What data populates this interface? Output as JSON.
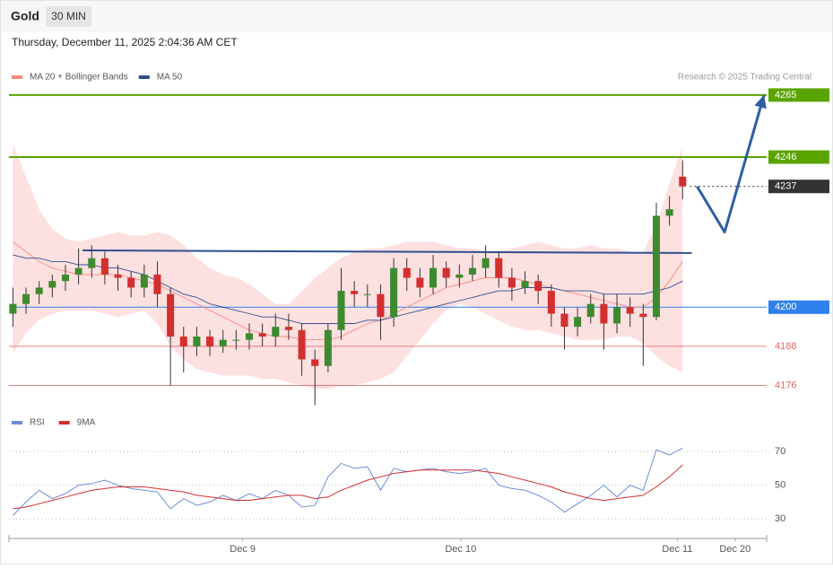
{
  "header": {
    "symbol": "Gold",
    "interval": "30 MIN",
    "timestamp": "Thursday, December 11, 2025 2:04:36 AM CET",
    "credit": "Research © 2025 Trading Central"
  },
  "chart_data": [
    {
      "type": "candlestick",
      "xlim": [
        -0.3,
        57.4
      ],
      "ylim": [
        4169,
        4268
      ],
      "up_color": "#3d8b2f",
      "down_color": "#d32f2f",
      "open": [
        4198,
        4201,
        4204,
        4206,
        4208,
        4210,
        4212,
        4215,
        4210,
        4209,
        4206,
        4210,
        4204,
        4191,
        4188,
        4191,
        4188,
        4190,
        4190,
        4192,
        4191,
        4194,
        4193,
        4184,
        4182,
        4193,
        4205,
        4204,
        4204,
        4197,
        4212,
        4209,
        4206,
        4212,
        4209,
        4210,
        4212,
        4215,
        4209,
        4206,
        4208,
        4205,
        4198,
        4194,
        4197,
        4201,
        4195,
        4200,
        4198,
        4197,
        4228,
        4240
      ],
      "high": [
        4206,
        4206,
        4208,
        4210,
        4213,
        4218,
        4219,
        4217,
        4213,
        4211,
        4213,
        4214,
        4206,
        4194,
        4194,
        4193,
        4193,
        4193,
        4195,
        4195,
        4198,
        4198,
        4195,
        4187,
        4195,
        4212,
        4208,
        4207,
        4207,
        4215,
        4215,
        4212,
        4216,
        4214,
        4213,
        4216,
        4219,
        4217,
        4212,
        4211,
        4210,
        4207,
        4200,
        4200,
        4204,
        4204,
        4204,
        4203,
        4201,
        4232,
        4234,
        4245
      ],
      "low": [
        4194,
        4198,
        4201,
        4203,
        4205,
        4207,
        4209,
        4207,
        4205,
        4203,
        4203,
        4200,
        4176,
        4180,
        4185,
        4185,
        4186,
        4187,
        4187,
        4188,
        4188,
        4190,
        4179,
        4170,
        4180,
        4190,
        4200,
        4200,
        4190,
        4194,
        4205,
        4203,
        4204,
        4206,
        4206,
        4208,
        4209,
        4206,
        4202,
        4204,
        4201,
        4194,
        4187,
        4191,
        4195,
        4187,
        4192,
        4194,
        4182,
        4196,
        4225,
        4233
      ],
      "close": [
        4201,
        4204,
        4206,
        4208,
        4210,
        4212,
        4215,
        4210,
        4209,
        4206,
        4210,
        4204,
        4191,
        4188,
        4191,
        4188,
        4190,
        4190,
        4192,
        4191,
        4194,
        4193,
        4184,
        4182,
        4193,
        4205,
        4204,
        4204,
        4197,
        4212,
        4209,
        4206,
        4212,
        4209,
        4210,
        4212,
        4215,
        4209,
        4206,
        4208,
        4205,
        4198,
        4194,
        4197,
        4201,
        4195,
        4200,
        4198,
        4197,
        4228,
        4230,
        4237
      ],
      "series": [
        {
          "name": "MA 20 + Bollinger Bands",
          "color": "#f28b82",
          "band_color": "#fde0e0",
          "values": [
            4220,
            4217,
            4214,
            4212,
            4211,
            4210,
            4210,
            4210,
            4210,
            4209,
            4208,
            4207,
            4205,
            4203,
            4201,
            4199,
            4197,
            4195,
            4193,
            4192,
            4191,
            4191,
            4190,
            4190,
            4190,
            4191,
            4193,
            4195,
            4196,
            4198,
            4200,
            4202,
            4204,
            4206,
            4207,
            4208,
            4209,
            4209,
            4209,
            4208,
            4207,
            4206,
            4205,
            4204,
            4203,
            4202,
            4201,
            4200,
            4200,
            4203,
            4208,
            4214
          ],
          "upper": [
            4250,
            4240,
            4230,
            4224,
            4221,
            4220,
            4221,
            4222,
            4223,
            4222,
            4222,
            4223,
            4222,
            4219,
            4215,
            4212,
            4210,
            4209,
            4207,
            4204,
            4201,
            4201,
            4205,
            4209,
            4212,
            4215,
            4217,
            4218,
            4218,
            4219,
            4220,
            4220,
            4220,
            4219,
            4218,
            4218,
            4217,
            4217,
            4218,
            4219,
            4220,
            4219,
            4218,
            4218,
            4219,
            4218,
            4218,
            4217,
            4217,
            4225,
            4238,
            4249
          ],
          "lower": [
            4186,
            4192,
            4196,
            4198,
            4199,
            4199,
            4199,
            4198,
            4197,
            4198,
            4199,
            4195,
            4188,
            4184,
            4181,
            4180,
            4179,
            4179,
            4179,
            4178,
            4178,
            4177,
            4176,
            4175,
            4175,
            4176,
            4176,
            4177,
            4178,
            4180,
            4185,
            4190,
            4195,
            4199,
            4201,
            4200,
            4198,
            4196,
            4194,
            4193,
            4193,
            4192,
            4191,
            4190,
            4190,
            4190,
            4191,
            4191,
            4189,
            4185,
            4182,
            4180
          ]
        },
        {
          "name": "MA 50",
          "color": "#2f4f8f",
          "values": [
            4216,
            4215,
            4215,
            4214,
            4214,
            4213,
            4213,
            4212,
            4212,
            4211,
            4210,
            4208,
            4206,
            4204,
            4203,
            4201,
            4200,
            4199,
            4198,
            4197,
            4197,
            4196,
            4195,
            4195,
            4195,
            4195,
            4195,
            4196,
            4196,
            4197,
            4198,
            4199,
            4200,
            4201,
            4202,
            4203,
            4204,
            4205,
            4205,
            4206,
            4206,
            4206,
            4205,
            4205,
            4205,
            4204,
            4204,
            4204,
            4204,
            4205,
            4206,
            4208
          ]
        }
      ],
      "levels": [
        {
          "value": 4265,
          "color": "#5aa400",
          "line_style": "solid",
          "label_box": true
        },
        {
          "value": 4246,
          "color": "#5aa400",
          "line_style": "solid",
          "label_box": true
        },
        {
          "value": 4237,
          "color": "#333333",
          "line_style": "dotted",
          "label_box": true
        },
        {
          "value": 4200,
          "color": "#2f80ed",
          "line_style": "solid",
          "label_box": true
        },
        {
          "value": 4188,
          "color": "#e06666",
          "line_style": "solid",
          "label_box": false
        },
        {
          "value": 4176,
          "color": "#e06666",
          "line_style": "solid",
          "label_box": false
        }
      ],
      "trend_line": {
        "color": "#2f4f8f",
        "x": [
          5.3,
          51.7
        ],
        "values": [
          4217.4,
          4216.6
        ]
      },
      "forecast": {
        "color": "#2e5fa3",
        "x": [
          52.1,
          54.2,
          57.2
        ],
        "values": [
          4237,
          4223,
          4265
        ]
      }
    },
    {
      "type": "line",
      "xlim": [
        -0.3,
        57.4
      ],
      "ylim": [
        21,
        77
      ],
      "xticks": [
        {
          "value": 17.5,
          "label": "Dec 9"
        },
        {
          "value": 34.1,
          "label": "Dec 10"
        },
        {
          "value": 50.6,
          "label": "Dec 11"
        },
        {
          "value": 55.0,
          "label": "Dec 20"
        }
      ],
      "yticks": [
        70,
        50,
        30
      ],
      "grid": true,
      "series": [
        {
          "name": "RSI",
          "color": "#6b8fd6",
          "values": [
            32,
            40,
            47,
            42,
            45,
            50,
            51,
            53,
            50,
            48,
            47,
            46,
            36,
            42,
            38,
            40,
            44,
            41,
            45,
            42,
            47,
            44,
            37,
            38,
            55,
            63,
            60,
            61,
            47,
            60,
            58,
            59,
            60,
            58,
            57,
            58,
            60,
            50,
            48,
            47,
            44,
            40,
            34,
            39,
            44,
            50,
            43,
            50,
            47,
            71,
            68,
            72
          ]
        },
        {
          "name": "9MA",
          "color": "#d32f2f",
          "values": [
            36,
            37,
            39,
            41,
            43,
            45,
            47,
            48,
            49,
            49,
            49,
            48,
            47,
            46,
            44,
            43,
            42,
            41,
            41,
            42,
            43,
            44,
            44,
            42,
            43,
            47,
            50,
            53,
            55,
            57,
            58,
            59,
            59,
            59,
            59,
            59,
            58,
            57,
            55,
            53,
            51,
            49,
            46,
            44,
            42,
            41,
            42,
            43,
            44,
            49,
            55,
            62
          ]
        }
      ]
    }
  ]
}
